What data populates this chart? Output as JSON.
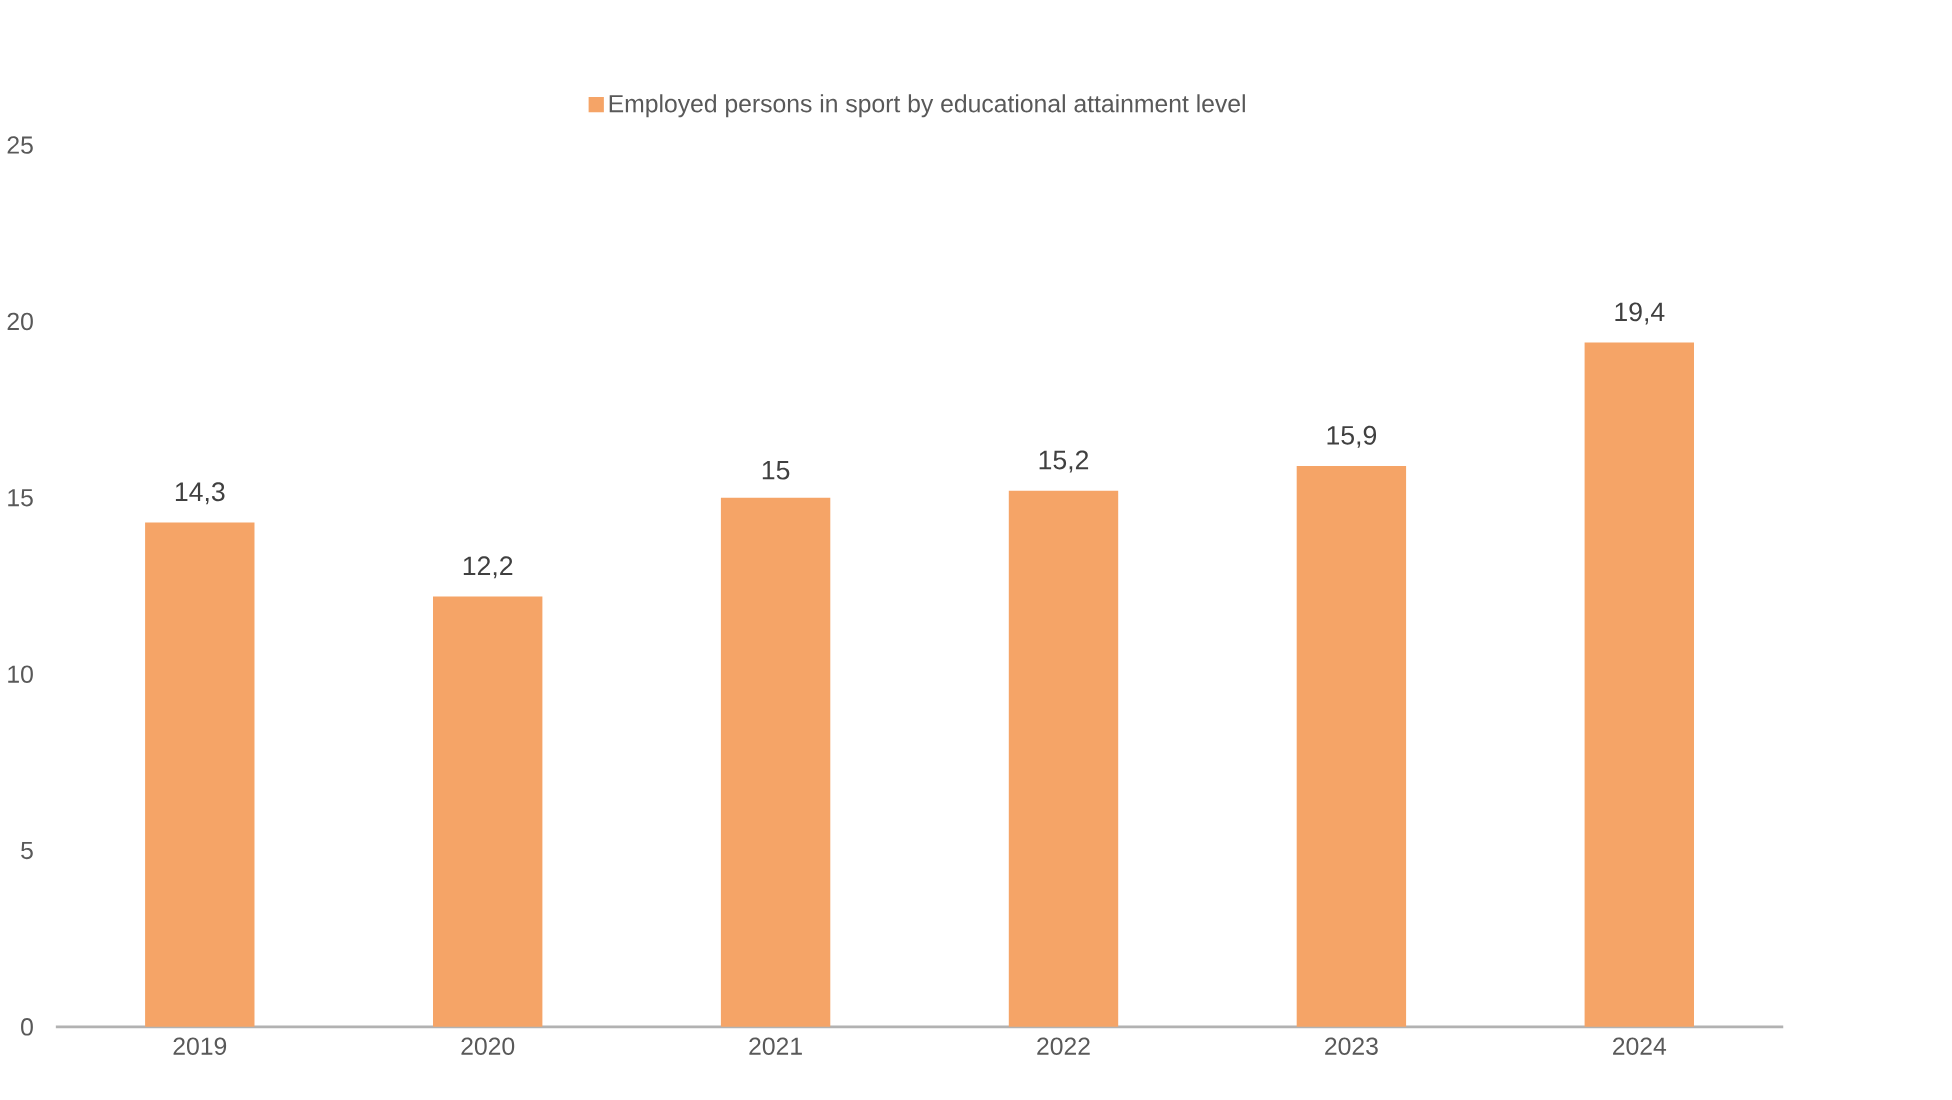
{
  "chart_data": {
    "type": "bar",
    "categories": [
      "2019",
      "2020",
      "2021",
      "2022",
      "2023",
      "2024"
    ],
    "series": [
      {
        "name": "Employed persons in sport by educational attainment level",
        "color": "#f5a467",
        "values": [
          14.3,
          12.2,
          15,
          15.2,
          15.9,
          19.4
        ],
        "value_labels": [
          "14,3",
          "12,2",
          "15",
          "15,2",
          "15,9",
          "19,4"
        ]
      }
    ],
    "ylim": [
      0,
      25
    ],
    "yticks": [
      0,
      5,
      10,
      15,
      20,
      25
    ],
    "grid": false,
    "legend": "top"
  }
}
